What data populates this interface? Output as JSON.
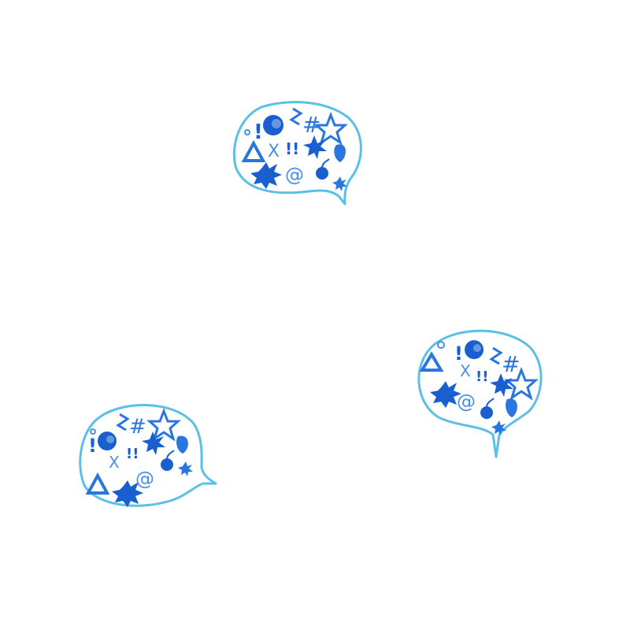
{
  "scene": {
    "description_free": true,
    "background_color": "#ffffff",
    "outline_color": "#5bc0e6",
    "symbol_color_dark": "#1a5fd0",
    "symbol_color_light": "#4a8ee8",
    "bubbles": [
      {
        "id": "top",
        "glyphs": [
          "!",
          "#",
          "X",
          "!!",
          "@"
        ]
      },
      {
        "id": "right",
        "glyphs": [
          "!",
          "#",
          "X",
          "!!",
          "@"
        ]
      },
      {
        "id": "left",
        "glyphs": [
          "!",
          "#",
          "X",
          "!!",
          "@"
        ]
      }
    ]
  }
}
